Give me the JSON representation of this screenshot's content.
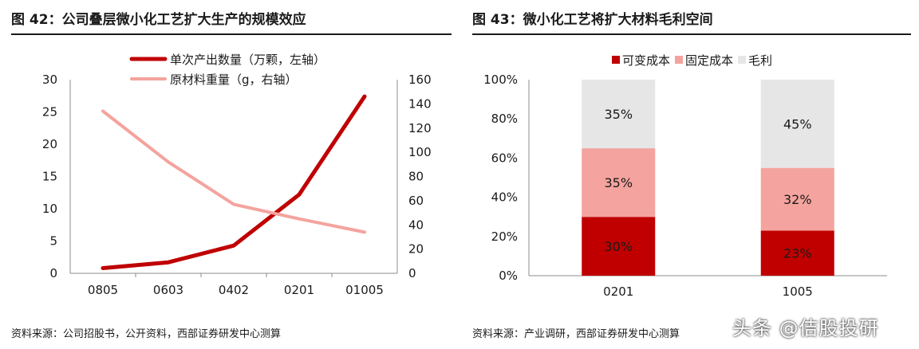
{
  "left_panel": {
    "title": "图 42：公司叠层微小化工艺扩大生产的规模效应",
    "source": "资料来源：公司招股书，公开资料，西部证券研发中心测算"
  },
  "right_panel": {
    "title": "图 43：微小化工艺将扩大材料毛利空间",
    "source": "资料来源：产业调研，西部证券研发中心测算"
  },
  "watermark": "头条 @佶股投研",
  "colors": {
    "dark_red": "#C00000",
    "light_red": "#F4A39E",
    "light_gray": "#E6E6E6"
  },
  "chart_data": [
    {
      "type": "line",
      "categories": [
        "0805",
        "0603",
        "0402",
        "0201",
        "01005"
      ],
      "series": [
        {
          "name": "单次产出数量（万颗，左轴）",
          "axis": "left",
          "color": "#C00000",
          "values": [
            0.8,
            1.7,
            4.3,
            12.2,
            27.4
          ]
        },
        {
          "name": "原材料重量（g，右轴）",
          "axis": "right",
          "color": "#F4A39E",
          "values": [
            134,
            92,
            57,
            45,
            34
          ]
        }
      ],
      "ylim_left": [
        0,
        30
      ],
      "yticks_left": [
        "0",
        "5",
        "10",
        "15",
        "20",
        "25",
        "30"
      ],
      "ylim_right": [
        0,
        160
      ],
      "yticks_right": [
        "0",
        "20",
        "40",
        "60",
        "80",
        "100",
        "120",
        "140",
        "160"
      ],
      "legend": "top-center",
      "grid": false
    },
    {
      "type": "bar",
      "stacked": true,
      "categories": [
        "0201",
        "1005"
      ],
      "series": [
        {
          "name": "可变成本",
          "color": "#C00000",
          "values": [
            30,
            23
          ],
          "labels": [
            "30%",
            "23%"
          ]
        },
        {
          "name": "固定成本",
          "color": "#F4A39E",
          "values": [
            35,
            32
          ],
          "labels": [
            "35%",
            "32%"
          ]
        },
        {
          "name": "毛利",
          "color": "#E6E6E6",
          "values": [
            35,
            45
          ],
          "labels": [
            "35%",
            "45%"
          ]
        }
      ],
      "ylim": [
        0,
        100
      ],
      "yticks": [
        "0%",
        "20%",
        "40%",
        "60%",
        "80%",
        "100%"
      ],
      "legend": "top-center",
      "grid": false
    }
  ]
}
